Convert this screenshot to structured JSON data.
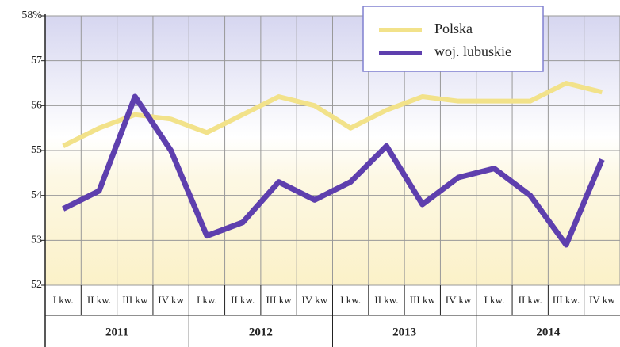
{
  "chart_data": {
    "type": "line",
    "categories": [
      "I kw.",
      "II kw.",
      "III kw",
      "IV kw",
      "I kw.",
      "II kw.",
      "III kw",
      "IV kw",
      "I kw.",
      "II kw.",
      "III kw",
      "IV kw",
      "I kw.",
      "II kw.",
      "III kw.",
      "IV kw"
    ],
    "years": [
      "2011",
      "2012",
      "2013",
      "2014"
    ],
    "series": [
      {
        "name": "Polska",
        "color": "#f2e28a",
        "values": [
          55.1,
          55.5,
          55.8,
          55.7,
          55.4,
          55.8,
          56.2,
          56.0,
          55.5,
          55.9,
          56.2,
          56.1,
          56.1,
          56.1,
          56.5,
          56.3
        ]
      },
      {
        "name": "woj. lubuskie",
        "color": "#5e3fae",
        "values": [
          53.7,
          54.1,
          56.2,
          55.0,
          53.1,
          53.4,
          54.3,
          53.9,
          54.3,
          55.1,
          53.8,
          54.4,
          54.6,
          54.0,
          52.9,
          54.8
        ]
      }
    ],
    "ylim": [
      52,
      58
    ],
    "yticks": [
      52,
      53,
      54,
      55,
      56,
      57,
      {
        "value": 58,
        "label": "58%"
      }
    ],
    "grid": true
  }
}
